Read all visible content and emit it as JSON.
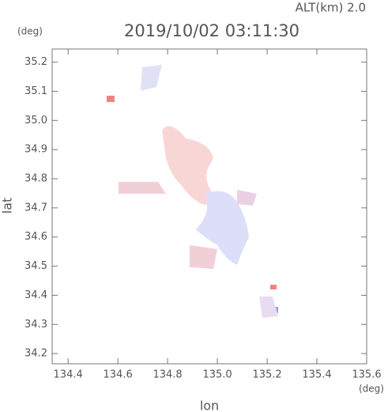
{
  "chart_data": {
    "type": "map",
    "title": "2019/10/02 03:11:30",
    "subtitle": "ALT(km) 2.0",
    "y_unit": "(deg)",
    "x_unit": "(deg)",
    "x_label": "lon",
    "y_label": "lat",
    "xlim": [
      134.336,
      135.6
    ],
    "ylim": [
      34.165,
      35.245
    ],
    "xticks": [
      134.4,
      134.6,
      134.8,
      {
        "value": 135.0,
        "label": "135.0"
      },
      135.2,
      135.4,
      135.6
    ],
    "yticks": [
      34.2,
      34.3,
      34.4,
      34.5,
      34.6,
      34.7,
      34.8,
      34.9,
      {
        "value": 35.0,
        "label": "35.0"
      },
      35.1,
      35.2
    ]
  }
}
